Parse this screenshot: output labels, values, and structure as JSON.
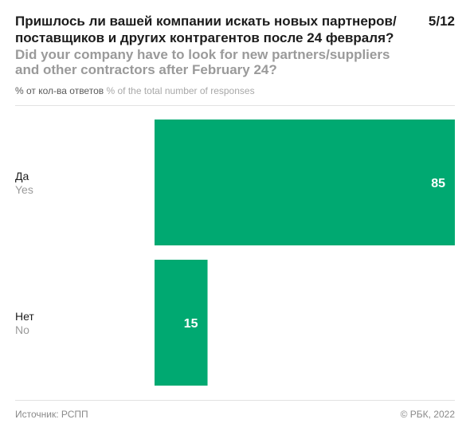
{
  "header": {
    "title_ru": "Пришлось ли вашей компании искать новых партнеров/ поставщиков и других контрагентов после 24 февраля?",
    "title_en": "Did your company have to look for new partners/suppliers and other contractors after February 24?",
    "page_indicator": "5/12",
    "note_ru": "% от кол-ва ответов",
    "note_en": "% of the total number of responses"
  },
  "footer": {
    "source": "Источник: РСПП",
    "copyright": "© РБК, 2022"
  },
  "colors": {
    "bar": "#00a971",
    "value_label": "#ffffff",
    "category_ru": "#1c1c1c",
    "category_en": "#9a9a9a"
  },
  "chart_data": {
    "type": "bar",
    "orientation": "horizontal",
    "categories": [
      {
        "ru": "Да",
        "en": "Yes"
      },
      {
        "ru": "Нет",
        "en": "No"
      }
    ],
    "values": [
      85,
      15
    ],
    "xlim": [
      0,
      85
    ]
  }
}
